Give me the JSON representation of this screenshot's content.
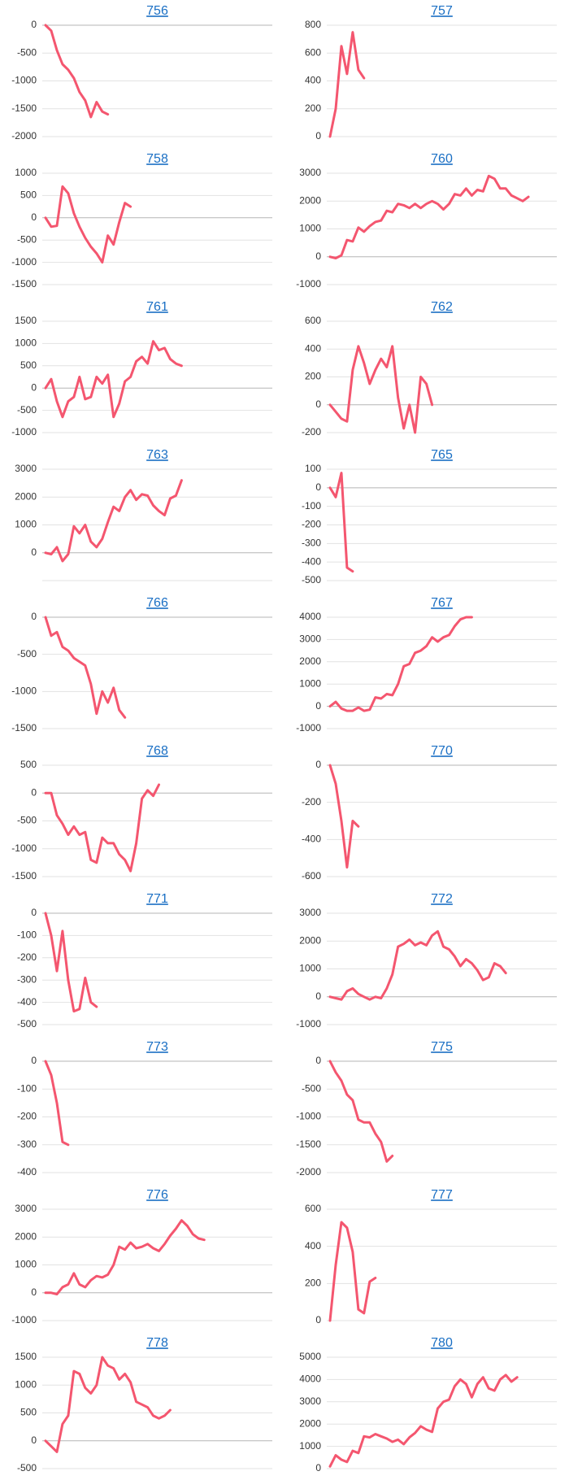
{
  "chart_data": [
    {
      "type": "line",
      "title": "756",
      "color": "#f4566f",
      "ylim": [
        -2000,
        0
      ],
      "yticks": [
        0,
        -500,
        -1000,
        -1500,
        -2000
      ],
      "values": [
        0,
        -100,
        -450,
        -700,
        -800,
        -950,
        -1200,
        -1350,
        -1650,
        -1380,
        -1550,
        -1600,
        null,
        null,
        null,
        null,
        null,
        null,
        null,
        null,
        null,
        null,
        null,
        null,
        null,
        null,
        null,
        null,
        null,
        null,
        null,
        null,
        null,
        null,
        null,
        null,
        null,
        null,
        null,
        null
      ]
    },
    {
      "type": "line",
      "title": "757",
      "color": "#f4566f",
      "ylim": [
        0,
        800
      ],
      "yticks": [
        800,
        600,
        400,
        200,
        0
      ],
      "values": [
        0,
        200,
        650,
        450,
        750,
        480,
        420,
        null,
        null,
        null,
        null,
        null,
        null,
        null,
        null,
        null,
        null,
        null,
        null,
        null,
        null,
        null,
        null,
        null,
        null,
        null,
        null,
        null,
        null,
        null,
        null,
        null,
        null,
        null,
        null,
        null,
        null,
        null,
        null,
        null
      ]
    },
    {
      "type": "line",
      "title": "758",
      "color": "#f4566f",
      "ylim": [
        -1500,
        1000
      ],
      "yticks": [
        1000,
        500,
        0,
        -500,
        -1000,
        -1500
      ],
      "values": [
        0,
        -200,
        -180,
        700,
        550,
        100,
        -200,
        -450,
        -650,
        -800,
        -1000,
        -400,
        -600,
        -100,
        330,
        250,
        null,
        null,
        null,
        null,
        null,
        null,
        null,
        null,
        null,
        null,
        null,
        null,
        null,
        null,
        null,
        null,
        null,
        null,
        null,
        null,
        null,
        null,
        null,
        null
      ]
    },
    {
      "type": "line",
      "title": "760",
      "color": "#f4566f",
      "ylim": [
        -1000,
        3000
      ],
      "yticks": [
        3000,
        2000,
        1000,
        0,
        -1000
      ],
      "values": [
        0,
        -50,
        50,
        600,
        550,
        1050,
        900,
        1100,
        1250,
        1300,
        1650,
        1600,
        1900,
        1850,
        1750,
        1900,
        1750,
        1900,
        2000,
        1900,
        1700,
        1900,
        2250,
        2200,
        2450,
        2200,
        2400,
        2350,
        2900,
        2800,
        2450,
        2450,
        2200,
        2100,
        2000,
        2150,
        null,
        null,
        null,
        null
      ]
    },
    {
      "type": "line",
      "title": "761",
      "color": "#f4566f",
      "ylim": [
        -1000,
        1500
      ],
      "yticks": [
        1500,
        1000,
        500,
        0,
        -500,
        -1000
      ],
      "values": [
        0,
        200,
        -300,
        -650,
        -300,
        -200,
        250,
        -250,
        -200,
        250,
        100,
        300,
        -650,
        -350,
        150,
        250,
        600,
        700,
        550,
        1050,
        850,
        900,
        650,
        550,
        500,
        null,
        null,
        null,
        null,
        null,
        null,
        null,
        null,
        null,
        null,
        null,
        null,
        null,
        null,
        null
      ]
    },
    {
      "type": "line",
      "title": "762",
      "color": "#f4566f",
      "ylim": [
        -200,
        600
      ],
      "yticks": [
        600,
        400,
        200,
        0,
        -200
      ],
      "values": [
        0,
        -50,
        -100,
        -120,
        250,
        420,
        300,
        150,
        250,
        330,
        270,
        420,
        50,
        -170,
        0,
        -200,
        200,
        150,
        0,
        null,
        null,
        null,
        null,
        null,
        null,
        null,
        null,
        null,
        null,
        null,
        null,
        null,
        null,
        null,
        null,
        null,
        null,
        null,
        null,
        null
      ]
    },
    {
      "type": "line",
      "title": "763",
      "color": "#f4566f",
      "ylim": [
        -1000,
        3000
      ],
      "yticks": [
        3000,
        2000,
        1000,
        0
      ],
      "values": [
        0,
        -50,
        200,
        -300,
        -50,
        950,
        700,
        1000,
        400,
        200,
        500,
        1100,
        1650,
        1500,
        2000,
        2250,
        1900,
        2100,
        2050,
        1700,
        1500,
        1350,
        1950,
        2050,
        2600,
        null,
        null,
        null,
        null,
        null,
        null,
        null,
        null,
        null,
        null,
        null,
        null,
        null,
        null,
        null
      ]
    },
    {
      "type": "line",
      "title": "765",
      "color": "#f4566f",
      "ylim": [
        -500,
        100
      ],
      "yticks": [
        100,
        0,
        -100,
        -200,
        -300,
        -400,
        -500
      ],
      "values": [
        0,
        -50,
        80,
        -430,
        -450,
        null,
        null,
        null,
        null,
        null,
        null,
        null,
        null,
        null,
        null,
        null,
        null,
        null,
        null,
        null,
        null,
        null,
        null,
        null,
        null,
        null,
        null,
        null,
        null,
        null,
        null,
        null,
        null,
        null,
        null,
        null,
        null,
        null,
        null,
        null
      ]
    },
    {
      "type": "line",
      "title": "766",
      "color": "#f4566f",
      "ylim": [
        -1500,
        0
      ],
      "yticks": [
        0,
        -500,
        -1000,
        -1500
      ],
      "values": [
        0,
        -250,
        -200,
        -400,
        -450,
        -550,
        -600,
        -650,
        -900,
        -1300,
        -1000,
        -1150,
        -950,
        -1250,
        -1350,
        null,
        null,
        null,
        null,
        null,
        null,
        null,
        null,
        null,
        null,
        null,
        null,
        null,
        null,
        null,
        null,
        null,
        null,
        null,
        null,
        null,
        null,
        null,
        null,
        null
      ]
    },
    {
      "type": "line",
      "title": "767",
      "color": "#f4566f",
      "ylim": [
        -1000,
        4000
      ],
      "yticks": [
        4000,
        3000,
        2000,
        1000,
        0,
        -1000
      ],
      "values": [
        0,
        200,
        -100,
        -200,
        -200,
        -50,
        -200,
        -150,
        400,
        350,
        550,
        500,
        1000,
        1800,
        1900,
        2400,
        2500,
        2700,
        3100,
        2900,
        3100,
        3200,
        3600,
        3900,
        4000,
        4000,
        null,
        null,
        null,
        null,
        null,
        null,
        null,
        null,
        null,
        null,
        null,
        null,
        null,
        null
      ]
    },
    {
      "type": "line",
      "title": "768",
      "color": "#f4566f",
      "ylim": [
        -1500,
        500
      ],
      "yticks": [
        500,
        0,
        -500,
        -1000,
        -1500
      ],
      "values": [
        0,
        0,
        -400,
        -550,
        -750,
        -600,
        -750,
        -700,
        -1200,
        -1250,
        -800,
        -900,
        -900,
        -1100,
        -1200,
        -1400,
        -900,
        -100,
        50,
        -50,
        150,
        null,
        null,
        null,
        null,
        null,
        null,
        null,
        null,
        null,
        null,
        null,
        null,
        null,
        null,
        null,
        null,
        null,
        null,
        null
      ]
    },
    {
      "type": "line",
      "title": "770",
      "color": "#f4566f",
      "ylim": [
        -600,
        0
      ],
      "yticks": [
        0,
        -200,
        -400,
        -600
      ],
      "values": [
        0,
        -100,
        -300,
        -550,
        -300,
        -330,
        null,
        null,
        null,
        null,
        null,
        null,
        null,
        null,
        null,
        null,
        null,
        null,
        null,
        null,
        null,
        null,
        null,
        null,
        null,
        null,
        null,
        null,
        null,
        null,
        null,
        null,
        null,
        null,
        null,
        null,
        null,
        null,
        null,
        null
      ]
    },
    {
      "type": "line",
      "title": "771",
      "color": "#f4566f",
      "ylim": [
        -500,
        0
      ],
      "yticks": [
        0,
        -100,
        -200,
        -300,
        -400,
        -500
      ],
      "values": [
        0,
        -100,
        -260,
        -80,
        -300,
        -440,
        -430,
        -290,
        -400,
        -420,
        null,
        null,
        null,
        null,
        null,
        null,
        null,
        null,
        null,
        null,
        null,
        null,
        null,
        null,
        null,
        null,
        null,
        null,
        null,
        null,
        null,
        null,
        null,
        null,
        null,
        null,
        null,
        null,
        null,
        null
      ]
    },
    {
      "type": "line",
      "title": "772",
      "color": "#f4566f",
      "ylim": [
        -1000,
        3000
      ],
      "yticks": [
        3000,
        2000,
        1000,
        0,
        -1000
      ],
      "values": [
        0,
        -50,
        -100,
        200,
        300,
        100,
        0,
        -100,
        0,
        -50,
        300,
        800,
        1800,
        1900,
        2050,
        1850,
        1950,
        1850,
        2200,
        2350,
        1800,
        1700,
        1450,
        1100,
        1350,
        1200,
        950,
        600,
        700,
        1200,
        1100,
        850,
        null,
        null,
        null,
        null,
        null,
        null,
        null,
        null
      ]
    },
    {
      "type": "line",
      "title": "773",
      "color": "#f4566f",
      "ylim": [
        -400,
        0
      ],
      "yticks": [
        0,
        -100,
        -200,
        -300,
        -400
      ],
      "values": [
        0,
        -50,
        -150,
        -290,
        -300,
        null,
        null,
        null,
        null,
        null,
        null,
        null,
        null,
        null,
        null,
        null,
        null,
        null,
        null,
        null,
        null,
        null,
        null,
        null,
        null,
        null,
        null,
        null,
        null,
        null,
        null,
        null,
        null,
        null,
        null,
        null,
        null,
        null,
        null,
        null
      ]
    },
    {
      "type": "line",
      "title": "775",
      "color": "#f4566f",
      "ylim": [
        -2000,
        0
      ],
      "yticks": [
        0,
        -500,
        -1000,
        -1500,
        -2000
      ],
      "values": [
        0,
        -200,
        -350,
        -600,
        -700,
        -1050,
        -1100,
        -1100,
        -1300,
        -1450,
        -1800,
        -1700,
        null,
        null,
        null,
        null,
        null,
        null,
        null,
        null,
        null,
        null,
        null,
        null,
        null,
        null,
        null,
        null,
        null,
        null,
        null,
        null,
        null,
        null,
        null,
        null,
        null,
        null,
        null,
        null
      ]
    },
    {
      "type": "line",
      "title": "776",
      "color": "#f4566f",
      "ylim": [
        -1000,
        3000
      ],
      "yticks": [
        3000,
        2000,
        1000,
        0,
        -1000
      ],
      "values": [
        0,
        0,
        -50,
        200,
        300,
        700,
        300,
        200,
        450,
        600,
        550,
        650,
        1000,
        1650,
        1550,
        1800,
        1600,
        1650,
        1750,
        1600,
        1500,
        1750,
        2050,
        2300,
        2600,
        2400,
        2100,
        1950,
        1900,
        null,
        null,
        null,
        null,
        null,
        null,
        null,
        null,
        null,
        null,
        null
      ]
    },
    {
      "type": "line",
      "title": "777",
      "color": "#f4566f",
      "ylim": [
        0,
        600
      ],
      "yticks": [
        600,
        400,
        200,
        0
      ],
      "values": [
        0,
        300,
        530,
        500,
        370,
        60,
        40,
        210,
        230,
        null,
        null,
        null,
        null,
        null,
        null,
        null,
        null,
        null,
        null,
        null,
        null,
        null,
        null,
        null,
        null,
        null,
        null,
        null,
        null,
        null,
        null,
        null,
        null,
        null,
        null,
        null,
        null,
        null,
        null,
        null
      ]
    },
    {
      "type": "line",
      "title": "778",
      "color": "#f4566f",
      "ylim": [
        -500,
        1500
      ],
      "yticks": [
        1500,
        1000,
        500,
        0,
        -500
      ],
      "values": [
        0,
        -100,
        -200,
        300,
        450,
        1250,
        1200,
        950,
        850,
        1000,
        1500,
        1350,
        1300,
        1100,
        1200,
        1050,
        700,
        650,
        600,
        450,
        400,
        450,
        550,
        null,
        null,
        null,
        null,
        null,
        null,
        null,
        null,
        null,
        null,
        null,
        null,
        null,
        null,
        null,
        null,
        null
      ]
    },
    {
      "type": "line",
      "title": "780",
      "color": "#f4566f",
      "ylim": [
        0,
        5000
      ],
      "yticks": [
        5000,
        4000,
        3000,
        2000,
        1000,
        0
      ],
      "values": [
        100,
        600,
        400,
        300,
        800,
        700,
        1450,
        1400,
        1550,
        1450,
        1350,
        1200,
        1300,
        1100,
        1400,
        1600,
        1900,
        1750,
        1650,
        2700,
        3000,
        3100,
        3700,
        4000,
        3800,
        3200,
        3800,
        4100,
        3600,
        3500,
        4000,
        4200,
        3900,
        4100,
        null,
        null,
        null,
        null,
        null,
        null
      ]
    }
  ]
}
